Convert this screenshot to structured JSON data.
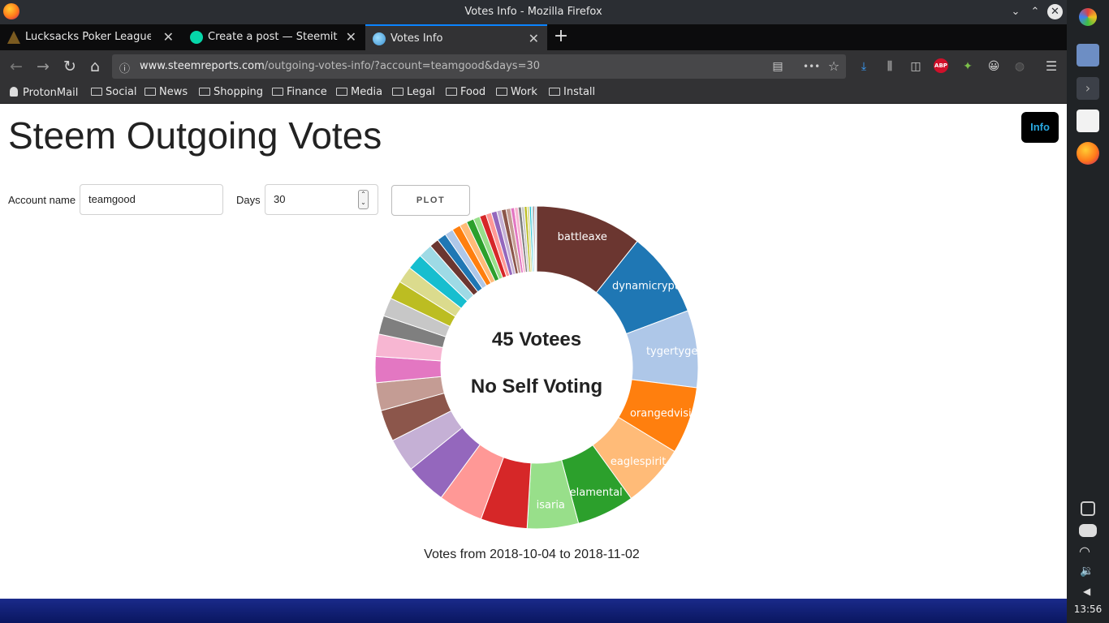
{
  "window": {
    "title": "Votes Info - Mozilla Firefox"
  },
  "tabs": [
    {
      "label": "Lucksacks Poker Leagues",
      "active": false
    },
    {
      "label": "Create a post — Steemit",
      "active": false
    },
    {
      "label": "Votes Info",
      "active": true
    }
  ],
  "navbar": {
    "url_host": "www.steemreports.com",
    "url_path": "/outgoing-votes-info/?account=teamgood&days=30",
    "icons": [
      "back-icon",
      "forward-icon",
      "reload-icon",
      "home-icon",
      "info-icon",
      "reader-view-icon",
      "more-icon",
      "star-icon",
      "download-icon",
      "library-icon",
      "sidebar-icon",
      "adblock-icon",
      "extension-icon",
      "emoji-icon",
      "sync-icon",
      "menu-icon"
    ]
  },
  "bookmarks": [
    "ProtonMail",
    "Social",
    "News",
    "Shopping",
    "Finance",
    "Media",
    "Legal",
    "Food",
    "Work",
    "Install"
  ],
  "page": {
    "title": "Steem Outgoing Votes",
    "info_button": "Info",
    "account_label": "Account name",
    "account_value": "teamgood",
    "days_label": "Days",
    "days_value": "30",
    "plot_button": "PLOT",
    "footer": "Votes from 2018-10-04 to 2018-11-02"
  },
  "chart_data": {
    "type": "pie",
    "center_text": [
      "45 Votees",
      "No Self Voting"
    ],
    "slices": [
      {
        "label": "battleaxe",
        "value": 11.5,
        "color": "#6b3630"
      },
      {
        "label": "dynamicrypto",
        "value": 9.2,
        "color": "#1f77b4"
      },
      {
        "label": "tygertyger",
        "value": 8.3,
        "color": "#aec7e8"
      },
      {
        "label": "orangedvision",
        "value": 7.2,
        "color": "#ff7f0e"
      },
      {
        "label": "eaglespirit",
        "value": 6.8,
        "color": "#ffbb78"
      },
      {
        "label": "elamental",
        "value": 6.2,
        "color": "#2ca02c"
      },
      {
        "label": "isaria",
        "value": 5.5,
        "color": "#98df8a"
      },
      {
        "label": "",
        "value": 5.0,
        "color": "#d62728"
      },
      {
        "label": "",
        "value": 4.8,
        "color": "#ff9896"
      },
      {
        "label": "",
        "value": 4.4,
        "color": "#9467bd"
      },
      {
        "label": "",
        "value": 3.6,
        "color": "#c5b0d5"
      },
      {
        "label": "",
        "value": 3.4,
        "color": "#8c564b"
      },
      {
        "label": "",
        "value": 3.0,
        "color": "#c49c94"
      },
      {
        "label": "",
        "value": 2.8,
        "color": "#e377c2"
      },
      {
        "label": "",
        "value": 2.4,
        "color": "#f7b6d2"
      },
      {
        "label": "",
        "value": 2.0,
        "color": "#7f7f7f"
      },
      {
        "label": "",
        "value": 2.0,
        "color": "#c7c7c7"
      },
      {
        "label": "",
        "value": 2.0,
        "color": "#bcbd22"
      },
      {
        "label": "",
        "value": 1.8,
        "color": "#dbdb8d"
      },
      {
        "label": "",
        "value": 1.7,
        "color": "#17becf"
      },
      {
        "label": "",
        "value": 1.5,
        "color": "#9edae5"
      },
      {
        "label": "",
        "value": 1.0,
        "color": "#6b3630"
      },
      {
        "label": "",
        "value": 1.0,
        "color": "#1f77b4"
      },
      {
        "label": "",
        "value": 0.9,
        "color": "#aec7e8"
      },
      {
        "label": "",
        "value": 0.9,
        "color": "#ff7f0e"
      },
      {
        "label": "",
        "value": 0.8,
        "color": "#ffbb78"
      },
      {
        "label": "",
        "value": 0.8,
        "color": "#2ca02c"
      },
      {
        "label": "",
        "value": 0.7,
        "color": "#98df8a"
      },
      {
        "label": "",
        "value": 0.7,
        "color": "#d62728"
      },
      {
        "label": "",
        "value": 0.6,
        "color": "#ff9896"
      },
      {
        "label": "",
        "value": 0.6,
        "color": "#9467bd"
      },
      {
        "label": "",
        "value": 0.5,
        "color": "#c5b0d5"
      },
      {
        "label": "",
        "value": 0.5,
        "color": "#8c564b"
      },
      {
        "label": "",
        "value": 0.5,
        "color": "#c49c94"
      },
      {
        "label": "",
        "value": 0.4,
        "color": "#e377c2"
      },
      {
        "label": "",
        "value": 0.4,
        "color": "#f7b6d2"
      },
      {
        "label": "",
        "value": 0.35,
        "color": "#7f7f7f"
      },
      {
        "label": "",
        "value": 0.3,
        "color": "#c7c7c7"
      },
      {
        "label": "",
        "value": 0.3,
        "color": "#bcbd22"
      },
      {
        "label": "",
        "value": 0.25,
        "color": "#dbdb8d"
      },
      {
        "label": "",
        "value": 0.2,
        "color": "#17becf"
      },
      {
        "label": "",
        "value": 0.2,
        "color": "#9edae5"
      },
      {
        "label": "",
        "value": 0.15,
        "color": "#6b3630"
      },
      {
        "label": "",
        "value": 0.12,
        "color": "#1f77b4"
      },
      {
        "label": "",
        "value": 0.1,
        "color": "#aec7e8"
      }
    ]
  },
  "system": {
    "clock": "13:56"
  }
}
